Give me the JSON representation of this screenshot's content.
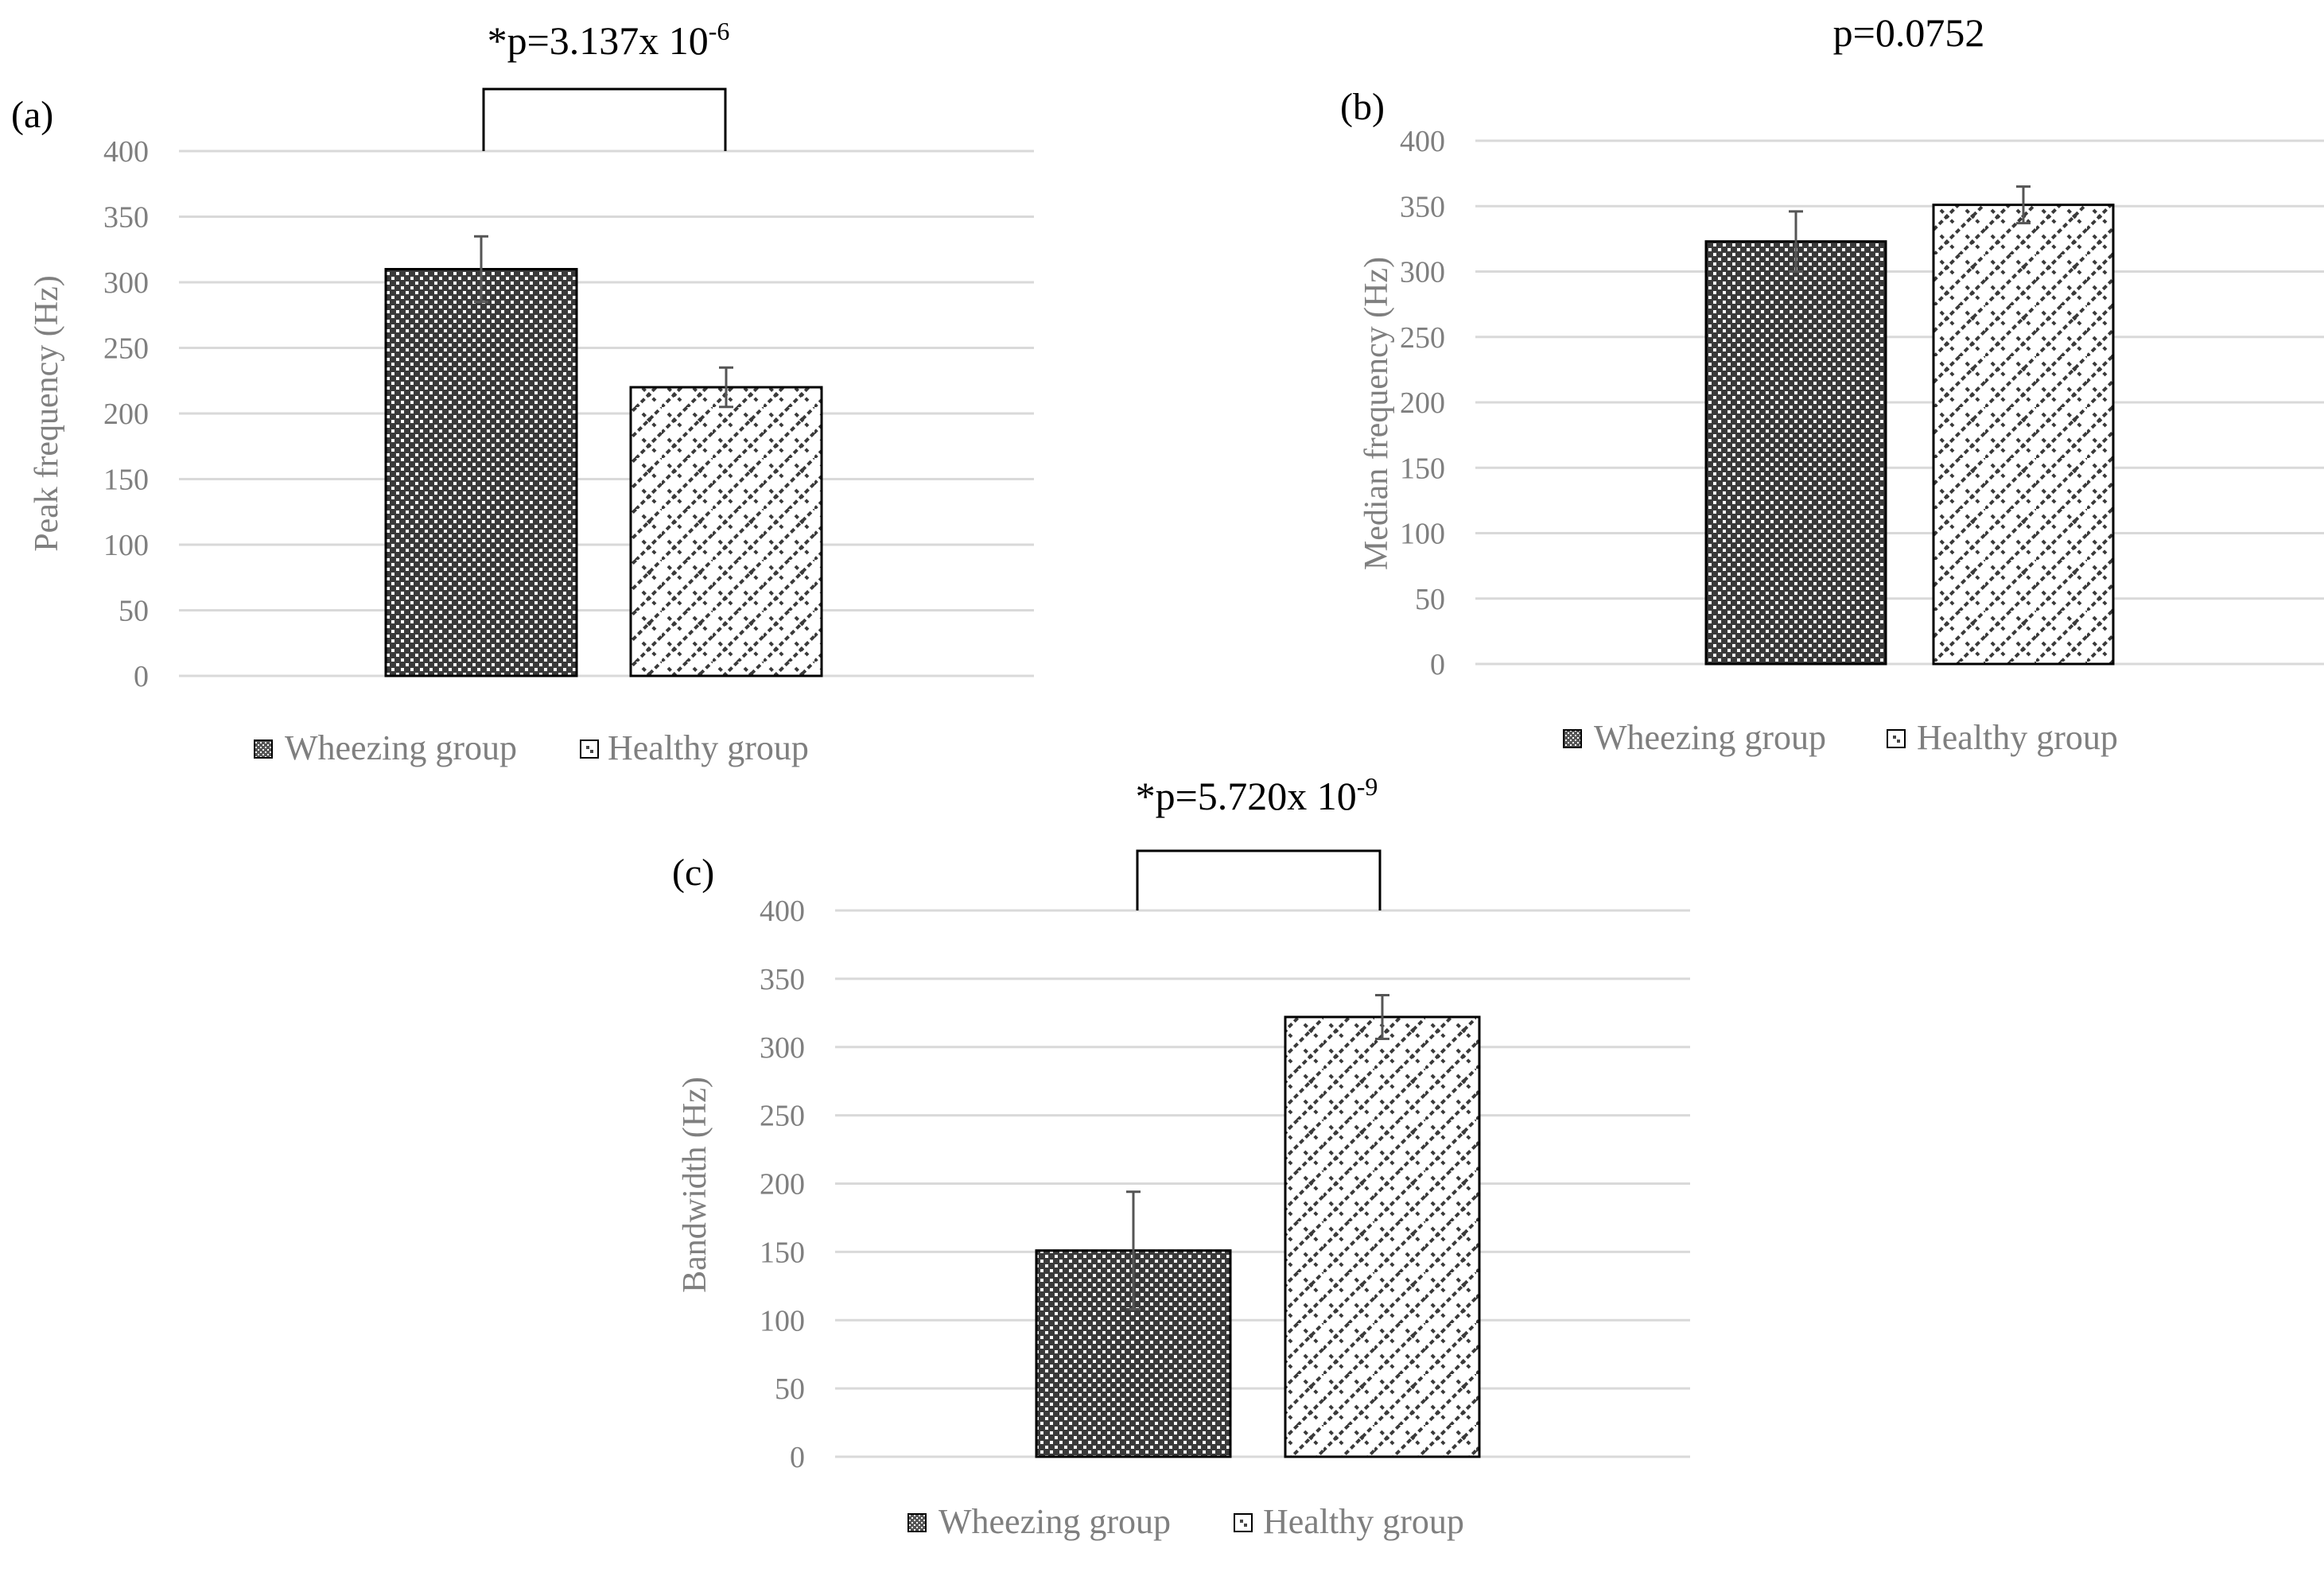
{
  "chart_data": [
    {
      "type": "bar",
      "panel_label": "(a)",
      "significance": {
        "prefix": "*p=3.137x 10",
        "exponent": "-6"
      },
      "ylabel": "Peak frequency (Hz)",
      "ylim": [
        0,
        400
      ],
      "yticks": [
        0,
        50,
        100,
        150,
        200,
        250,
        300,
        350,
        400
      ],
      "series": [
        {
          "name": "Wheezing group",
          "value": 310,
          "error": 25,
          "pattern": "dots"
        },
        {
          "name": "Healthy group",
          "value": 220,
          "error": 15,
          "pattern": "diag"
        }
      ],
      "legend": [
        "Wheezing group",
        "Healthy group"
      ]
    },
    {
      "type": "bar",
      "panel_label": "(b)",
      "significance": {
        "prefix": "p=0.0752",
        "exponent": ""
      },
      "ylabel": "Median frequency (Hz)",
      "ylim": [
        0,
        400
      ],
      "yticks": [
        0,
        50,
        100,
        150,
        200,
        250,
        300,
        350,
        400
      ],
      "series": [
        {
          "name": "Wheezing group",
          "value": 323,
          "error": 23,
          "pattern": "dots"
        },
        {
          "name": "Healthy group",
          "value": 351,
          "error": 14,
          "pattern": "diag"
        }
      ],
      "legend": [
        "Wheezing group",
        "Healthy group"
      ]
    },
    {
      "type": "bar",
      "panel_label": "(c)",
      "significance": {
        "prefix": "*p=5.720x 10",
        "exponent": "-9"
      },
      "ylabel": "Bandwidth (Hz)",
      "ylim": [
        0,
        400
      ],
      "yticks": [
        0,
        50,
        100,
        150,
        200,
        250,
        300,
        350,
        400
      ],
      "series": [
        {
          "name": "Wheezing group",
          "value": 151,
          "error": 43,
          "pattern": "dots"
        },
        {
          "name": "Healthy group",
          "value": 322,
          "error": 16,
          "pattern": "diag"
        }
      ],
      "legend": [
        "Wheezing group",
        "Healthy group"
      ]
    }
  ]
}
